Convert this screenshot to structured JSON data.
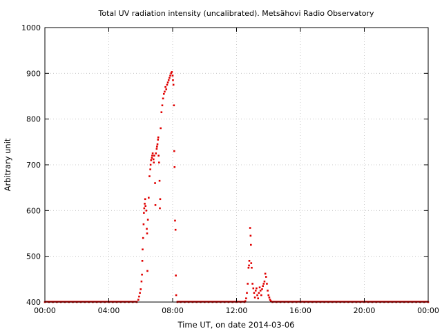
{
  "chart_data": {
    "type": "scatter",
    "title": "Total UV radiation intensity (uncalibrated). Metsähovi Radio Observatory",
    "xlabel": "Time UT, on date 2014-03-06",
    "ylabel": "Arbitrary unit",
    "xlim": [
      0,
      24
    ],
    "ylim": [
      400,
      1000
    ],
    "x_unit": "hours UT",
    "x_tick_values": [
      0,
      4,
      8,
      12,
      16,
      20,
      24
    ],
    "x_tick_labels": [
      "00:00",
      "04:00",
      "08:00",
      "12:00",
      "16:00",
      "20:00",
      "00:00"
    ],
    "y_ticks": [
      400,
      500,
      600,
      700,
      800,
      900,
      1000
    ],
    "grid": true,
    "legend": "none",
    "color": "#e00000",
    "points": [
      [
        0.0,
        400
      ],
      [
        0.25,
        400
      ],
      [
        0.5,
        400
      ],
      [
        0.75,
        400
      ],
      [
        1.0,
        400
      ],
      [
        1.25,
        400
      ],
      [
        1.5,
        400
      ],
      [
        1.75,
        400
      ],
      [
        2.0,
        400
      ],
      [
        2.25,
        400
      ],
      [
        2.5,
        400
      ],
      [
        2.75,
        400
      ],
      [
        3.0,
        400
      ],
      [
        3.25,
        400
      ],
      [
        3.5,
        400
      ],
      [
        3.75,
        400
      ],
      [
        4.0,
        400
      ],
      [
        4.25,
        400
      ],
      [
        4.5,
        400
      ],
      [
        4.75,
        400
      ],
      [
        5.0,
        400
      ],
      [
        5.25,
        400
      ],
      [
        5.5,
        400
      ],
      [
        5.75,
        400
      ],
      [
        5.85,
        405
      ],
      [
        5.9,
        412
      ],
      [
        5.95,
        420
      ],
      [
        6.0,
        428
      ],
      [
        6.05,
        445
      ],
      [
        6.08,
        460
      ],
      [
        6.1,
        490
      ],
      [
        6.12,
        515
      ],
      [
        6.15,
        540
      ],
      [
        6.18,
        570
      ],
      [
        6.2,
        595
      ],
      [
        6.22,
        605
      ],
      [
        6.25,
        615
      ],
      [
        6.28,
        625
      ],
      [
        6.3,
        610
      ],
      [
        6.35,
        600
      ],
      [
        6.38,
        560
      ],
      [
        6.4,
        550
      ],
      [
        6.42,
        468
      ],
      [
        6.45,
        580
      ],
      [
        6.5,
        628
      ],
      [
        6.55,
        675
      ],
      [
        6.6,
        690
      ],
      [
        6.62,
        700
      ],
      [
        6.65,
        710
      ],
      [
        6.7,
        715
      ],
      [
        6.72,
        720
      ],
      [
        6.75,
        725
      ],
      [
        6.8,
        712
      ],
      [
        6.82,
        705
      ],
      [
        6.85,
        720
      ],
      [
        6.9,
        660
      ],
      [
        6.92,
        612
      ],
      [
        6.95,
        725
      ],
      [
        7.0,
        735
      ],
      [
        7.02,
        740
      ],
      [
        7.05,
        745
      ],
      [
        7.08,
        755
      ],
      [
        7.1,
        760
      ],
      [
        7.12,
        720
      ],
      [
        7.15,
        705
      ],
      [
        7.18,
        665
      ],
      [
        7.2,
        605
      ],
      [
        7.22,
        625
      ],
      [
        7.25,
        780
      ],
      [
        7.3,
        815
      ],
      [
        7.35,
        830
      ],
      [
        7.4,
        845
      ],
      [
        7.45,
        855
      ],
      [
        7.5,
        860
      ],
      [
        7.55,
        870
      ],
      [
        7.6,
        865
      ],
      [
        7.65,
        875
      ],
      [
        7.7,
        880
      ],
      [
        7.75,
        885
      ],
      [
        7.8,
        890
      ],
      [
        7.85,
        895
      ],
      [
        7.9,
        900
      ],
      [
        7.95,
        903
      ],
      [
        8.0,
        895
      ],
      [
        8.02,
        885
      ],
      [
        8.05,
        875
      ],
      [
        8.08,
        830
      ],
      [
        8.1,
        730
      ],
      [
        8.12,
        695
      ],
      [
        8.15,
        578
      ],
      [
        8.18,
        558
      ],
      [
        8.2,
        458
      ],
      [
        8.22,
        415
      ],
      [
        8.3,
        400
      ],
      [
        8.5,
        400
      ],
      [
        8.75,
        400
      ],
      [
        9.0,
        400
      ],
      [
        9.25,
        400
      ],
      [
        9.5,
        400
      ],
      [
        9.75,
        400
      ],
      [
        10.0,
        400
      ],
      [
        10.25,
        400
      ],
      [
        10.5,
        400
      ],
      [
        10.75,
        400
      ],
      [
        11.0,
        400
      ],
      [
        11.25,
        400
      ],
      [
        11.5,
        400
      ],
      [
        11.75,
        400
      ],
      [
        12.0,
        400
      ],
      [
        12.25,
        400
      ],
      [
        12.5,
        400
      ],
      [
        12.55,
        402
      ],
      [
        12.6,
        408
      ],
      [
        12.65,
        420
      ],
      [
        12.7,
        440
      ],
      [
        12.75,
        475
      ],
      [
        12.78,
        480
      ],
      [
        12.8,
        490
      ],
      [
        12.85,
        562
      ],
      [
        12.88,
        545
      ],
      [
        12.9,
        525
      ],
      [
        12.92,
        485
      ],
      [
        12.95,
        475
      ],
      [
        13.0,
        440
      ],
      [
        13.05,
        430
      ],
      [
        13.1,
        420
      ],
      [
        13.15,
        410
      ],
      [
        13.2,
        425
      ],
      [
        13.25,
        430
      ],
      [
        13.3,
        415
      ],
      [
        13.35,
        408
      ],
      [
        13.4,
        420
      ],
      [
        13.45,
        432
      ],
      [
        13.5,
        425
      ],
      [
        13.55,
        415
      ],
      [
        13.6,
        428
      ],
      [
        13.65,
        435
      ],
      [
        13.7,
        440
      ],
      [
        13.75,
        445
      ],
      [
        13.8,
        462
      ],
      [
        13.85,
        455
      ],
      [
        13.9,
        440
      ],
      [
        13.95,
        425
      ],
      [
        14.0,
        415
      ],
      [
        14.05,
        410
      ],
      [
        14.1,
        405
      ],
      [
        14.15,
        402
      ],
      [
        14.25,
        400
      ],
      [
        14.5,
        400
      ],
      [
        14.75,
        400
      ],
      [
        15.0,
        400
      ],
      [
        15.25,
        400
      ],
      [
        15.5,
        400
      ],
      [
        15.75,
        400
      ],
      [
        16.0,
        400
      ],
      [
        16.25,
        400
      ],
      [
        16.5,
        400
      ],
      [
        16.75,
        400
      ],
      [
        17.0,
        400
      ],
      [
        17.25,
        400
      ],
      [
        17.5,
        400
      ],
      [
        17.75,
        400
      ],
      [
        18.0,
        400
      ],
      [
        18.25,
        400
      ],
      [
        18.5,
        400
      ],
      [
        18.75,
        400
      ],
      [
        19.0,
        400
      ],
      [
        19.25,
        400
      ],
      [
        19.5,
        400
      ],
      [
        19.75,
        400
      ],
      [
        20.0,
        400
      ],
      [
        20.25,
        400
      ],
      [
        20.5,
        400
      ],
      [
        20.75,
        400
      ],
      [
        21.0,
        400
      ],
      [
        21.25,
        400
      ],
      [
        21.5,
        400
      ],
      [
        21.75,
        400
      ],
      [
        22.0,
        400
      ],
      [
        22.25,
        400
      ],
      [
        22.5,
        400
      ],
      [
        22.75,
        400
      ],
      [
        23.0,
        400
      ],
      [
        23.25,
        400
      ],
      [
        23.5,
        400
      ],
      [
        23.75,
        400
      ],
      [
        24.0,
        400
      ]
    ]
  }
}
